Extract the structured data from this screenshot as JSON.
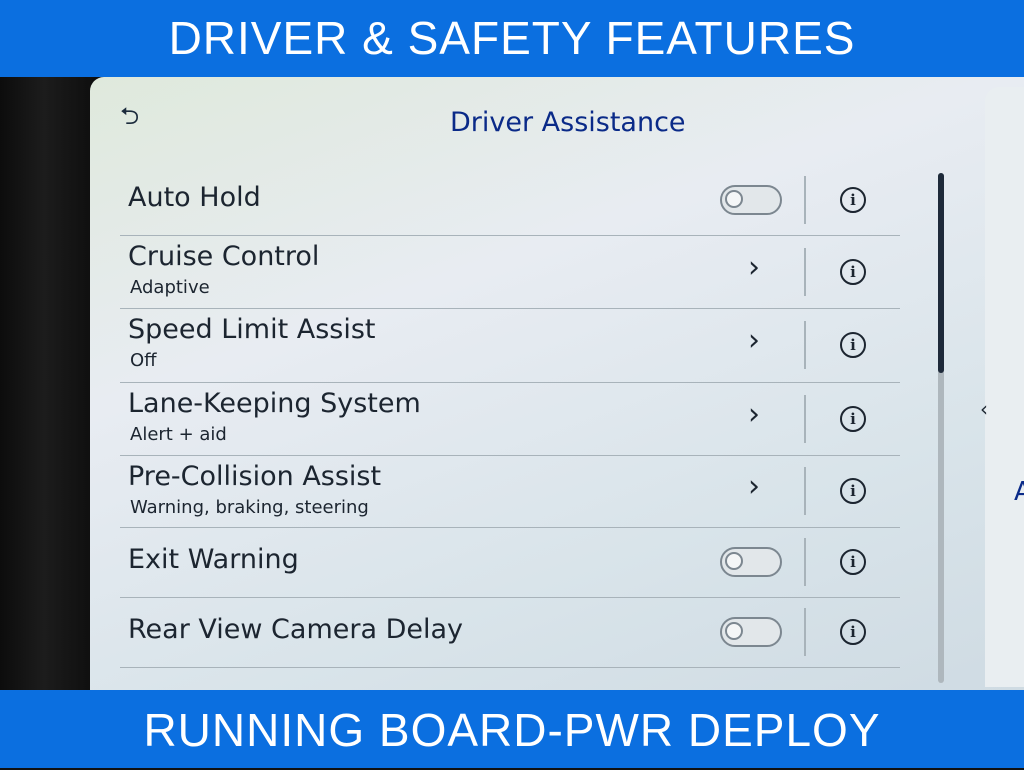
{
  "banners": {
    "top": "DRIVER & SAFETY FEATURES",
    "bottom": "RUNNING BOARD-PWR DEPLOY"
  },
  "screen": {
    "title": "Driver Assistance",
    "back_icon": "back-arrow-icon",
    "side_panel_letter": "A",
    "scroll_position_percent": 0,
    "rows": [
      {
        "label": "Auto Hold",
        "sub": "",
        "control": "toggle",
        "on": false
      },
      {
        "label": "Cruise Control",
        "sub": "Adaptive",
        "control": "chevron"
      },
      {
        "label": "Speed Limit Assist",
        "sub": "Off",
        "control": "chevron"
      },
      {
        "label": "Lane-Keeping System",
        "sub": "Alert + aid",
        "control": "chevron"
      },
      {
        "label": "Pre-Collision Assist",
        "sub": "Warning, braking, steering",
        "control": "chevron"
      },
      {
        "label": "Exit Warning",
        "sub": "",
        "control": "toggle",
        "on": false
      },
      {
        "label": "Rear View Camera Delay",
        "sub": "",
        "control": "toggle",
        "on": false
      }
    ]
  },
  "colors": {
    "banner": "#0b6fe0",
    "title": "#0a2a88"
  }
}
